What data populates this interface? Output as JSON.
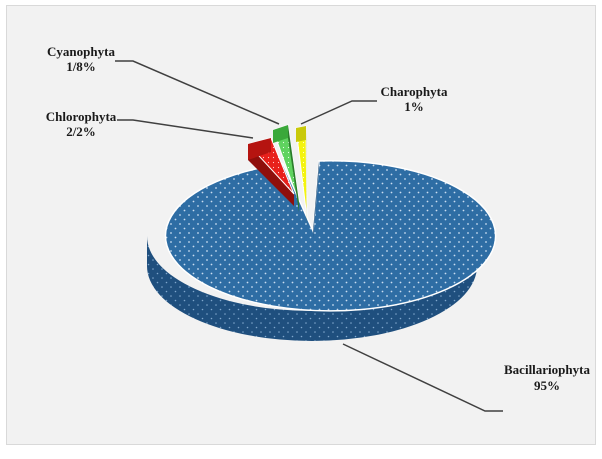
{
  "chart_data": {
    "type": "pie",
    "title": "",
    "slices": [
      {
        "name": "Bacillariophyta",
        "value_label": "95%",
        "value": 95,
        "color": "#2e6da4"
      },
      {
        "name": "Chlorophyta",
        "value_label": "2/2%",
        "value": 2.2,
        "color": "#e8201b"
      },
      {
        "name": "Cyanophyta",
        "value_label": "1/8%",
        "value": 1.8,
        "color": "#5fd35f"
      },
      {
        "name": "Charophyta",
        "value_label": "1%",
        "value": 1,
        "color": "#f4f40e"
      }
    ],
    "style": "3d-exploded-dotted"
  }
}
